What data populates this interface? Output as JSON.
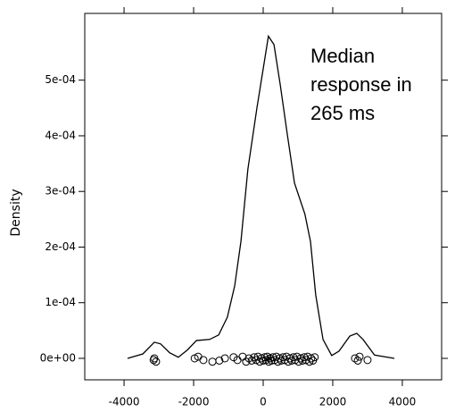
{
  "chart_data": {
    "type": "line",
    "ylabel": "Density",
    "annotation": [
      "Median",
      "response in",
      "265 ms"
    ],
    "xlim": [
      -5130,
      5130
    ],
    "ylim": [
      -3.86e-05,
      0.00062
    ],
    "xticks": [
      -4000,
      -2000,
      0,
      2000,
      4000
    ],
    "yticks": [
      {
        "value": 0,
        "label": "0e+00"
      },
      {
        "value": 0.0001,
        "label": "1e-04"
      },
      {
        "value": 0.0002,
        "label": "2e-04"
      },
      {
        "value": 0.0003,
        "label": "3e-04"
      },
      {
        "value": 0.0004,
        "label": "4e-04"
      },
      {
        "value": 0.0005,
        "label": "5e-04"
      }
    ],
    "series": [
      {
        "mode": "line",
        "color": "#000000",
        "x": [
          -3900,
          -3460,
          -3130,
          -2950,
          -2690,
          -2440,
          -2180,
          -1920,
          -1540,
          -1280,
          -1030,
          -820,
          -640,
          -440,
          -180,
          25,
          150,
          310,
          490,
          690,
          900,
          1200,
          1360,
          1510,
          1720,
          1970,
          2180,
          2490,
          2690,
          2870,
          3200,
          3770
        ],
        "values": [
          0,
          8e-06,
          2.9e-05,
          2.6e-05,
          1e-05,
          2e-06,
          1.5e-05,
          3.2e-05,
          3.4e-05,
          4.2e-05,
          7.4e-05,
          0.00013,
          0.00021,
          0.00034,
          0.00045,
          0.00053,
          0.000579,
          0.000564,
          0.000492,
          0.000404,
          0.000315,
          0.000259,
          0.00021,
          0.000114,
          3.4e-05,
          5e-06,
          1.3e-05,
          4e-05,
          4.5e-05,
          3.4e-05,
          6e-06,
          0
        ]
      },
      {
        "mode": "points",
        "color": "#000000",
        "x": [
          -3150,
          -3080,
          -3130,
          -1970,
          -1870,
          -1720,
          -1460,
          -1260,
          -1100,
          -850,
          -740,
          -590,
          -490,
          -410,
          -330,
          -260,
          -200,
          -150,
          -100,
          -50,
          0,
          40,
          80,
          120,
          160,
          200,
          240,
          280,
          330,
          380,
          420,
          470,
          520,
          570,
          620,
          670,
          720,
          770,
          820,
          870,
          920,
          970,
          1020,
          1080,
          1130,
          1180,
          1230,
          1280,
          1330,
          1380,
          1430,
          1480,
          2640,
          2720,
          2770,
          3000
        ],
        "values": [
          -3e-06,
          -6e-06,
          0,
          0,
          3e-06,
          -3e-06,
          -6e-06,
          -4e-06,
          0,
          2e-06,
          -3e-06,
          3e-06,
          -6e-06,
          0,
          -4e-06,
          2e-06,
          -3e-06,
          3e-06,
          -6e-06,
          0,
          -4e-06,
          2e-06,
          -3e-06,
          3e-06,
          -6e-06,
          0,
          -4e-06,
          2e-06,
          -3e-06,
          3e-06,
          -6e-06,
          0,
          -4e-06,
          2e-06,
          -3e-06,
          3e-06,
          -6e-06,
          0,
          -4e-06,
          2e-06,
          -3e-06,
          3e-06,
          -6e-06,
          0,
          -4e-06,
          2e-06,
          -3e-06,
          3e-06,
          -6e-06,
          0,
          -4e-06,
          2e-06,
          0,
          -4e-06,
          3e-06,
          -3e-06
        ]
      }
    ]
  }
}
